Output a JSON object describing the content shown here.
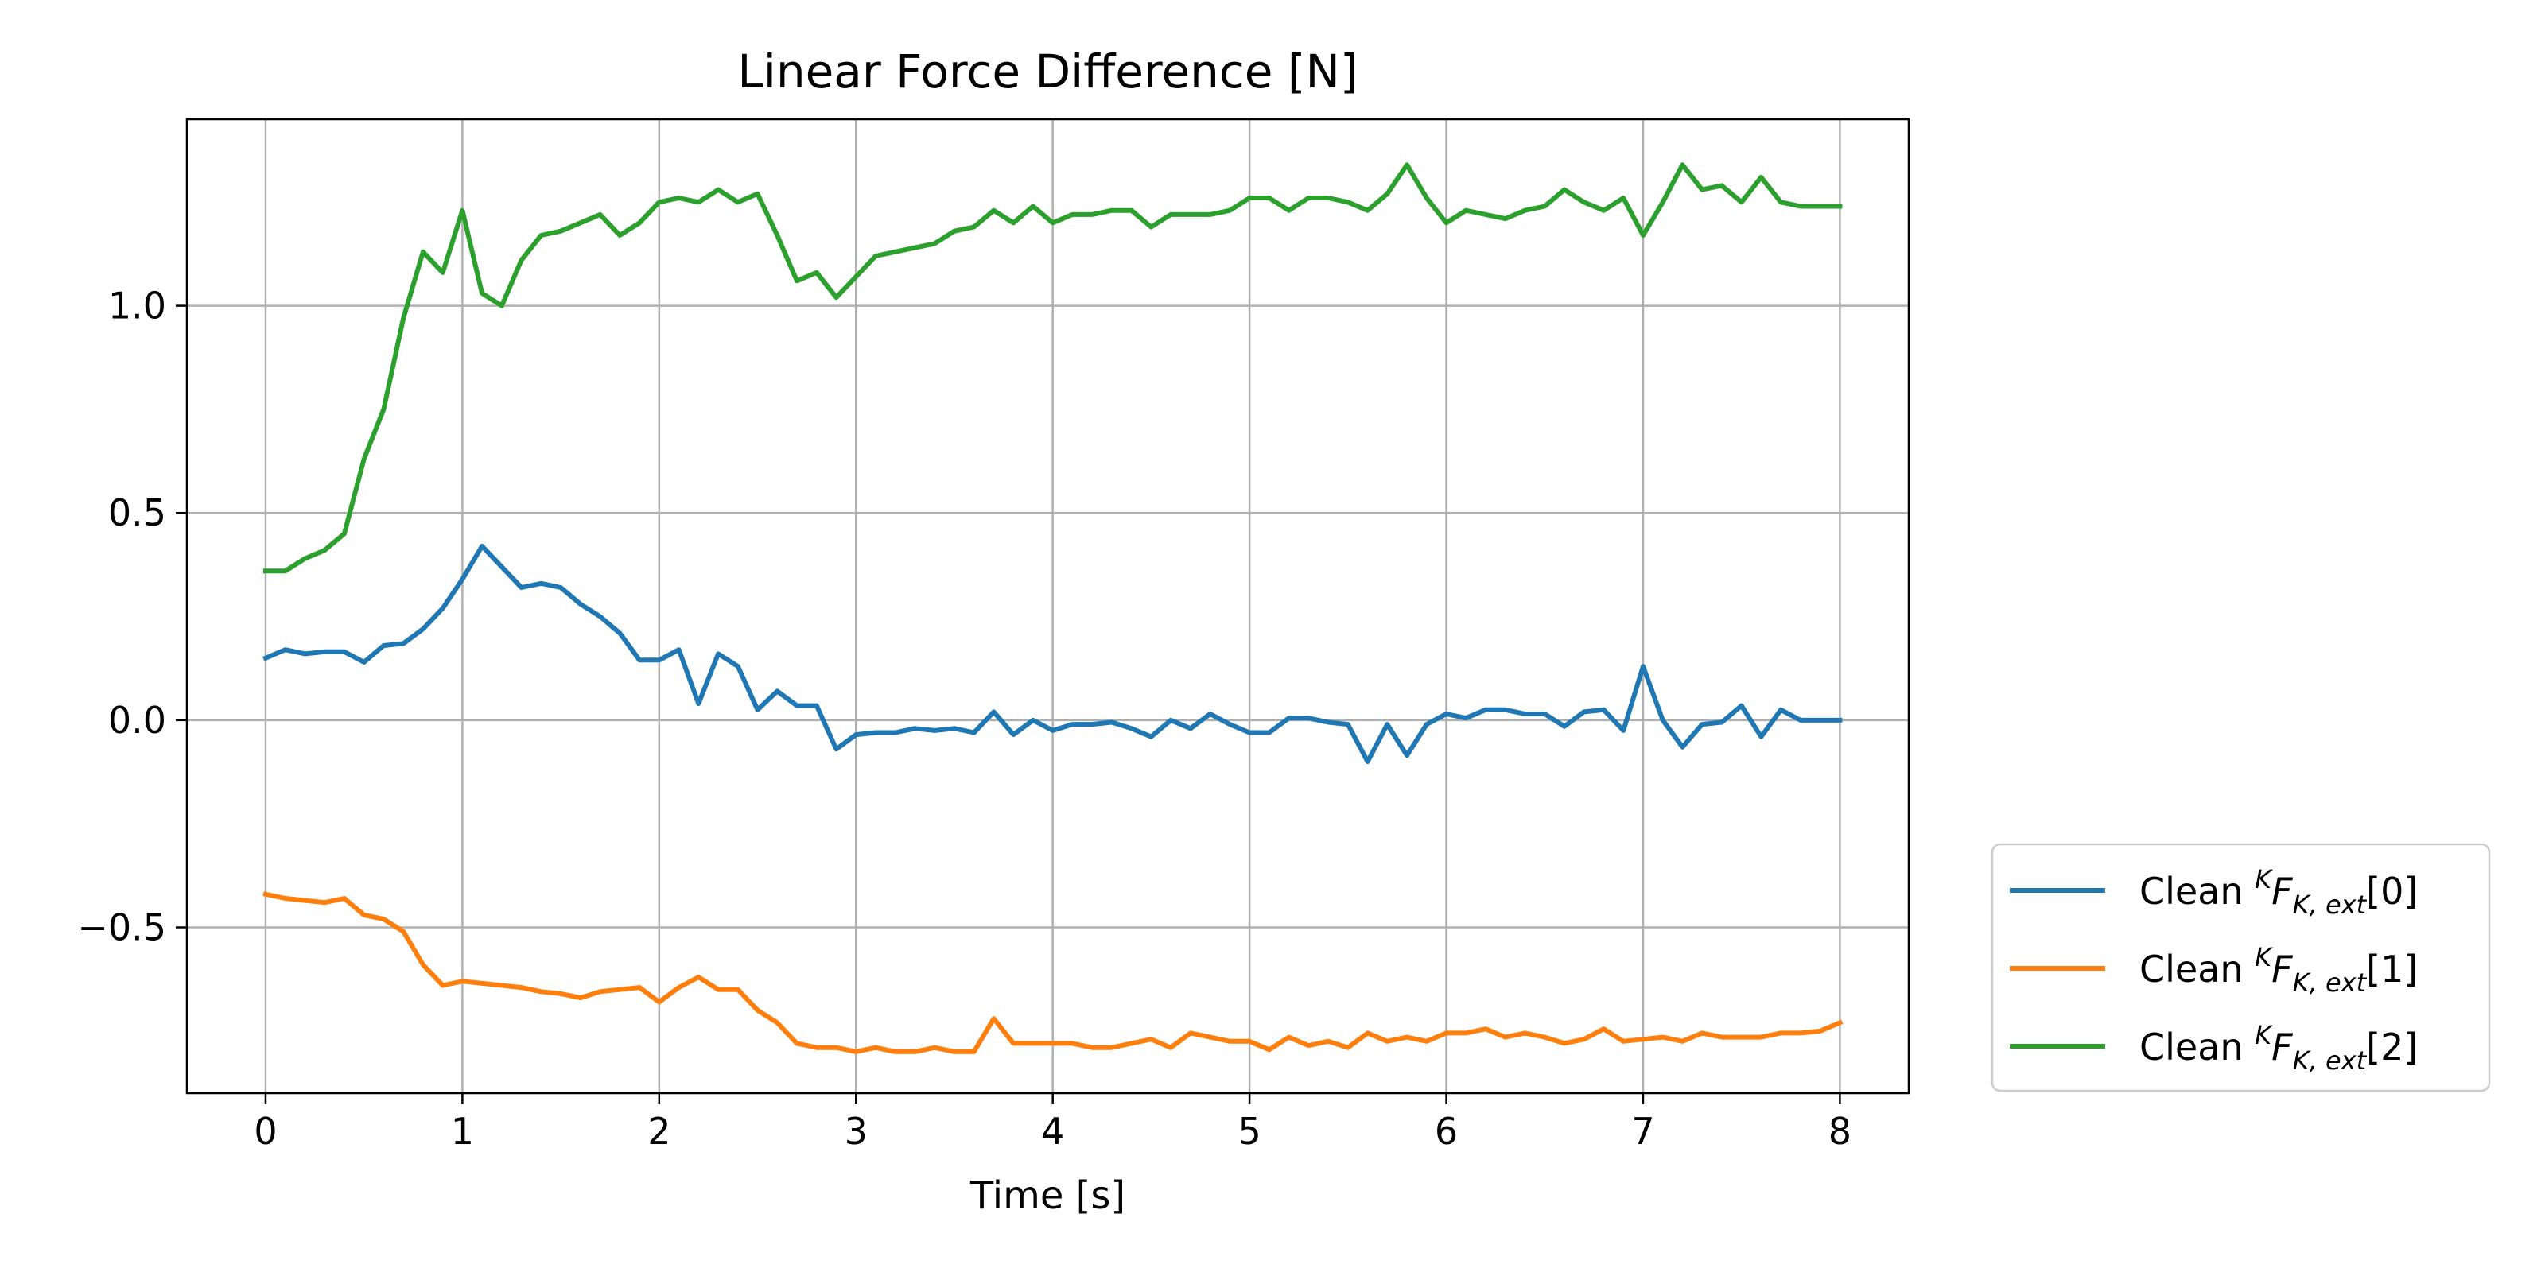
{
  "chart_data": {
    "type": "line",
    "title": "Linear Force Difference [N]",
    "xlabel": "Time [s]",
    "ylabel": "",
    "xlim": [
      -0.4,
      8.35
    ],
    "ylim": [
      -0.9,
      1.45
    ],
    "xticks": [
      0,
      1,
      2,
      3,
      4,
      5,
      6,
      7,
      8
    ],
    "xtick_labels": [
      "0",
      "1",
      "2",
      "3",
      "4",
      "5",
      "6",
      "7",
      "8"
    ],
    "yticks": [
      -0.5,
      0.0,
      0.5,
      1.0
    ],
    "ytick_labels": [
      "−0.5",
      "0.0",
      "0.5",
      "1.0"
    ],
    "grid": true,
    "legend_position": "outside-lower-right",
    "x": [
      0.0,
      0.1,
      0.2,
      0.3,
      0.4,
      0.5,
      0.6,
      0.7,
      0.8,
      0.9,
      1.0,
      1.1,
      1.2,
      1.3,
      1.4,
      1.5,
      1.6,
      1.7,
      1.8,
      1.9,
      2.0,
      2.1,
      2.2,
      2.3,
      2.4,
      2.5,
      2.6,
      2.7,
      2.8,
      2.9,
      3.0,
      3.1,
      3.2,
      3.3,
      3.4,
      3.5,
      3.6,
      3.7,
      3.8,
      3.9,
      4.0,
      4.1,
      4.2,
      4.3,
      4.4,
      4.5,
      4.6,
      4.7,
      4.8,
      4.9,
      5.0,
      5.1,
      5.2,
      5.3,
      5.4,
      5.5,
      5.6,
      5.7,
      5.8,
      5.9,
      6.0,
      6.1,
      6.2,
      6.3,
      6.4,
      6.5,
      6.6,
      6.7,
      6.8,
      6.9,
      7.0,
      7.1,
      7.2,
      7.3,
      7.4,
      7.5,
      7.6,
      7.7,
      7.8,
      7.9,
      8.0
    ],
    "series": [
      {
        "name": "Clean {K}F{K,ext}[0]",
        "legend": {
          "pre": "Clean ",
          "sup": "K",
          "main": "F",
          "sub": "K, ext",
          "post": "[0]"
        },
        "color": "#1f77b4",
        "values": [
          0.15,
          0.17,
          0.16,
          0.165,
          0.165,
          0.14,
          0.18,
          0.185,
          0.22,
          0.27,
          0.34,
          0.42,
          0.37,
          0.32,
          0.33,
          0.32,
          0.28,
          0.25,
          0.21,
          0.145,
          0.145,
          0.17,
          0.04,
          0.16,
          0.13,
          0.025,
          0.07,
          0.035,
          0.035,
          -0.07,
          -0.035,
          -0.03,
          -0.03,
          -0.02,
          -0.025,
          -0.02,
          -0.03,
          0.02,
          -0.035,
          0.0,
          -0.025,
          -0.01,
          -0.01,
          -0.005,
          -0.02,
          -0.04,
          0.0,
          -0.02,
          0.015,
          -0.01,
          -0.03,
          -0.03,
          0.005,
          0.005,
          -0.005,
          -0.01,
          -0.1,
          -0.01,
          -0.085,
          -0.01,
          0.015,
          0.005,
          0.025,
          0.025,
          0.015,
          0.015,
          -0.015,
          0.02,
          0.025,
          -0.025,
          0.13,
          0.0,
          -0.065,
          -0.01,
          -0.005,
          0.035,
          -0.04,
          0.025,
          0.0,
          0.0,
          0.0
        ]
      },
      {
        "name": "Clean {K}F{K,ext}[1]",
        "legend": {
          "pre": "Clean ",
          "sup": "K",
          "main": "F",
          "sub": "K, ext",
          "post": "[1]"
        },
        "color": "#ff7f0e",
        "values": [
          -0.42,
          -0.43,
          -0.435,
          -0.44,
          -0.43,
          -0.47,
          -0.48,
          -0.51,
          -0.59,
          -0.64,
          -0.63,
          -0.635,
          -0.64,
          -0.645,
          -0.655,
          -0.66,
          -0.67,
          -0.655,
          -0.65,
          -0.645,
          -0.68,
          -0.645,
          -0.62,
          -0.65,
          -0.65,
          -0.7,
          -0.73,
          -0.78,
          -0.79,
          -0.79,
          -0.8,
          -0.79,
          -0.8,
          -0.8,
          -0.79,
          -0.8,
          -0.8,
          -0.72,
          -0.78,
          -0.78,
          -0.78,
          -0.78,
          -0.79,
          -0.79,
          -0.78,
          -0.77,
          -0.79,
          -0.755,
          -0.765,
          -0.775,
          -0.775,
          -0.795,
          -0.765,
          -0.785,
          -0.775,
          -0.79,
          -0.755,
          -0.775,
          -0.765,
          -0.775,
          -0.755,
          -0.755,
          -0.745,
          -0.765,
          -0.755,
          -0.765,
          -0.78,
          -0.77,
          -0.745,
          -0.775,
          -0.77,
          -0.765,
          -0.775,
          -0.755,
          -0.765,
          -0.765,
          -0.765,
          -0.755,
          -0.755,
          -0.75,
          -0.73
        ]
      },
      {
        "name": "Clean {K}F{K,ext}[2]",
        "legend": {
          "pre": "Clean ",
          "sup": "K",
          "main": "F",
          "sub": "K, ext",
          "post": "[2]"
        },
        "color": "#2ca02c",
        "values": [
          0.36,
          0.36,
          0.39,
          0.41,
          0.45,
          0.63,
          0.75,
          0.97,
          1.13,
          1.08,
          1.23,
          1.03,
          1.0,
          1.11,
          1.17,
          1.18,
          1.2,
          1.22,
          1.17,
          1.2,
          1.25,
          1.26,
          1.25,
          1.28,
          1.25,
          1.27,
          1.17,
          1.06,
          1.08,
          1.02,
          1.07,
          1.12,
          1.13,
          1.14,
          1.15,
          1.18,
          1.19,
          1.23,
          1.2,
          1.24,
          1.2,
          1.22,
          1.22,
          1.23,
          1.23,
          1.19,
          1.22,
          1.22,
          1.22,
          1.23,
          1.26,
          1.26,
          1.23,
          1.26,
          1.26,
          1.25,
          1.23,
          1.27,
          1.34,
          1.26,
          1.2,
          1.23,
          1.22,
          1.21,
          1.23,
          1.24,
          1.28,
          1.25,
          1.23,
          1.26,
          1.17,
          1.25,
          1.34,
          1.28,
          1.29,
          1.25,
          1.31,
          1.25,
          1.24,
          1.24,
          1.24
        ]
      }
    ]
  }
}
